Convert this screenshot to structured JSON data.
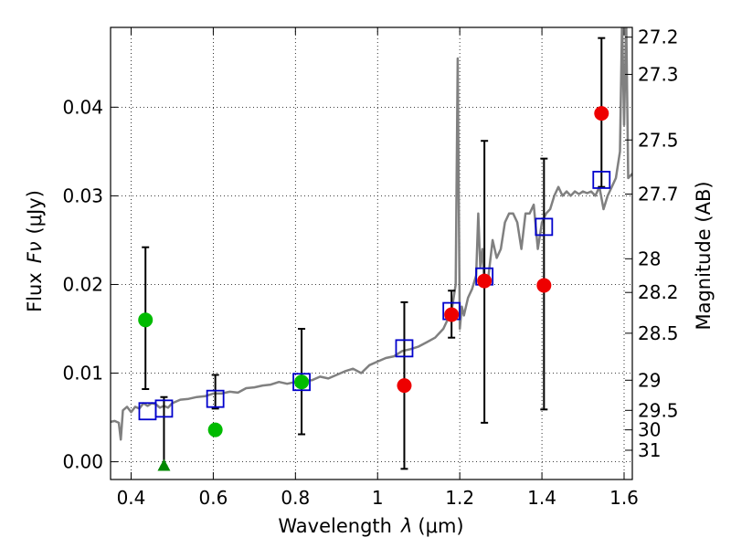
{
  "chart_data": {
    "type": "scatter",
    "xlabel": "Wavelength",
    "xlabel_symbol": "λ",
    "xlabel_unit": "(μm)",
    "ylabel": "Flux",
    "ylabel_symbol": "Fν",
    "ylabel_unit": "(μJy)",
    "y2label": "Magnitude (AB)",
    "xlim": [
      0.35,
      1.62
    ],
    "ylim": [
      -0.002,
      0.049
    ],
    "x_ticks": [
      0.4,
      0.6,
      0.8,
      1.0,
      1.2,
      1.4,
      1.6
    ],
    "x_tick_labels": [
      "0.4",
      "0.6",
      "0.8",
      "1",
      "1.2",
      "1.4",
      "1.6"
    ],
    "y_ticks": [
      0.0,
      0.01,
      0.02,
      0.03,
      0.04
    ],
    "y_tick_labels": [
      "0.00",
      "0.01",
      "0.02",
      "0.03",
      "0.04"
    ],
    "y2_ticks": [
      {
        "label": "27.2",
        "flux": 0.0479
      },
      {
        "label": "27.3",
        "flux": 0.0437
      },
      {
        "label": "27.5",
        "flux": 0.0363
      },
      {
        "label": "27.7",
        "flux": 0.0302
      },
      {
        "label": "28",
        "flux": 0.0229
      },
      {
        "label": "28.2",
        "flux": 0.0191
      },
      {
        "label": "28.5",
        "flux": 0.0145
      },
      {
        "label": "29",
        "flux": 0.0092
      },
      {
        "label": "29.5",
        "flux": 0.0058
      },
      {
        "label": "30",
        "flux": 0.0036
      },
      {
        "label": "31",
        "flux": 0.0013
      }
    ],
    "grid": true,
    "series": [
      {
        "name": "model SED",
        "kind": "line",
        "color": "#808080",
        "x": [
          0.35,
          0.36,
          0.37,
          0.375,
          0.38,
          0.39,
          0.4,
          0.41,
          0.42,
          0.43,
          0.44,
          0.45,
          0.46,
          0.47,
          0.48,
          0.49,
          0.5,
          0.52,
          0.54,
          0.56,
          0.58,
          0.6,
          0.62,
          0.64,
          0.66,
          0.68,
          0.7,
          0.72,
          0.74,
          0.76,
          0.78,
          0.8,
          0.82,
          0.84,
          0.86,
          0.88,
          0.9,
          0.92,
          0.94,
          0.96,
          0.98,
          1.0,
          1.02,
          1.04,
          1.06,
          1.08,
          1.1,
          1.12,
          1.14,
          1.16,
          1.18,
          1.19,
          1.195,
          1.2,
          1.205,
          1.21,
          1.22,
          1.23,
          1.24,
          1.245,
          1.25,
          1.255,
          1.26,
          1.27,
          1.28,
          1.29,
          1.3,
          1.31,
          1.32,
          1.33,
          1.34,
          1.35,
          1.36,
          1.37,
          1.38,
          1.39,
          1.4,
          1.41,
          1.42,
          1.43,
          1.44,
          1.45,
          1.46,
          1.47,
          1.48,
          1.49,
          1.5,
          1.51,
          1.52,
          1.53,
          1.54,
          1.55,
          1.56,
          1.57,
          1.58,
          1.59,
          1.595,
          1.6,
          1.605,
          1.61,
          1.62
        ],
        "y": [
          0.0045,
          0.0046,
          0.0044,
          0.0025,
          0.0058,
          0.0062,
          0.0056,
          0.0062,
          0.006,
          0.0066,
          0.0063,
          0.0066,
          0.0065,
          0.0061,
          0.0063,
          0.0061,
          0.0066,
          0.007,
          0.0071,
          0.0073,
          0.0074,
          0.0077,
          0.0077,
          0.0079,
          0.0078,
          0.0083,
          0.0084,
          0.0086,
          0.0087,
          0.009,
          0.0088,
          0.009,
          0.0091,
          0.0092,
          0.0096,
          0.0094,
          0.0098,
          0.0102,
          0.0105,
          0.01,
          0.0109,
          0.0113,
          0.0117,
          0.0119,
          0.0125,
          0.0127,
          0.013,
          0.0135,
          0.014,
          0.015,
          0.017,
          0.02,
          0.0455,
          0.015,
          0.0175,
          0.0165,
          0.0185,
          0.0195,
          0.021,
          0.028,
          0.022,
          0.024,
          0.02,
          0.021,
          0.025,
          0.023,
          0.024,
          0.027,
          0.028,
          0.028,
          0.027,
          0.024,
          0.028,
          0.028,
          0.029,
          0.024,
          0.027,
          0.028,
          0.0285,
          0.03,
          0.031,
          0.03,
          0.0305,
          0.03,
          0.0305,
          0.0302,
          0.0305,
          0.0303,
          0.0305,
          0.03,
          0.031,
          0.0285,
          0.03,
          0.031,
          0.032,
          0.035,
          0.05,
          0.038,
          0.05,
          0.032,
          0.0325
        ]
      },
      {
        "name": "model photometry",
        "kind": "open-square",
        "color": "#0000cc",
        "x": [
          0.44,
          0.48,
          0.605,
          0.815,
          1.065,
          1.18,
          1.26,
          1.405,
          1.545
        ],
        "y": [
          0.0057,
          0.006,
          0.0071,
          0.009,
          0.0128,
          0.017,
          0.0209,
          0.0265,
          0.0318
        ]
      },
      {
        "name": "green detections",
        "kind": "circle",
        "color": "#00bb00",
        "x": [
          0.435,
          0.605,
          0.815
        ],
        "y": [
          0.016,
          0.0036,
          0.009
        ],
        "yerr_low": [
          0.0082,
          0.006,
          null
        ],
        "yerr_high": [
          0.0242,
          0.0098,
          null
        ]
      },
      {
        "name": "green upper limit",
        "kind": "triangle",
        "color": "#008800",
        "x": [
          0.48
        ],
        "y": [
          -0.0005
        ],
        "yerr_low": [
          -0.0005
        ],
        "yerr_high": [
          0.0073
        ]
      },
      {
        "name": "red detections",
        "kind": "circle",
        "color": "#ee0000",
        "x": [
          1.065,
          1.18,
          1.26,
          1.405,
          1.545
        ],
        "y": [
          0.0086,
          0.0166,
          0.0204,
          0.0199,
          0.0393
        ],
        "yerr_low": [
          -0.0008,
          0.014,
          0.0044,
          0.0059,
          0.031
        ],
        "yerr_high": [
          0.018,
          0.0193,
          0.0362,
          0.0342,
          0.0478
        ]
      }
    ],
    "extra_errorbars": [
      {
        "x": 0.815,
        "low": 0.0031,
        "high": 0.015
      }
    ]
  }
}
